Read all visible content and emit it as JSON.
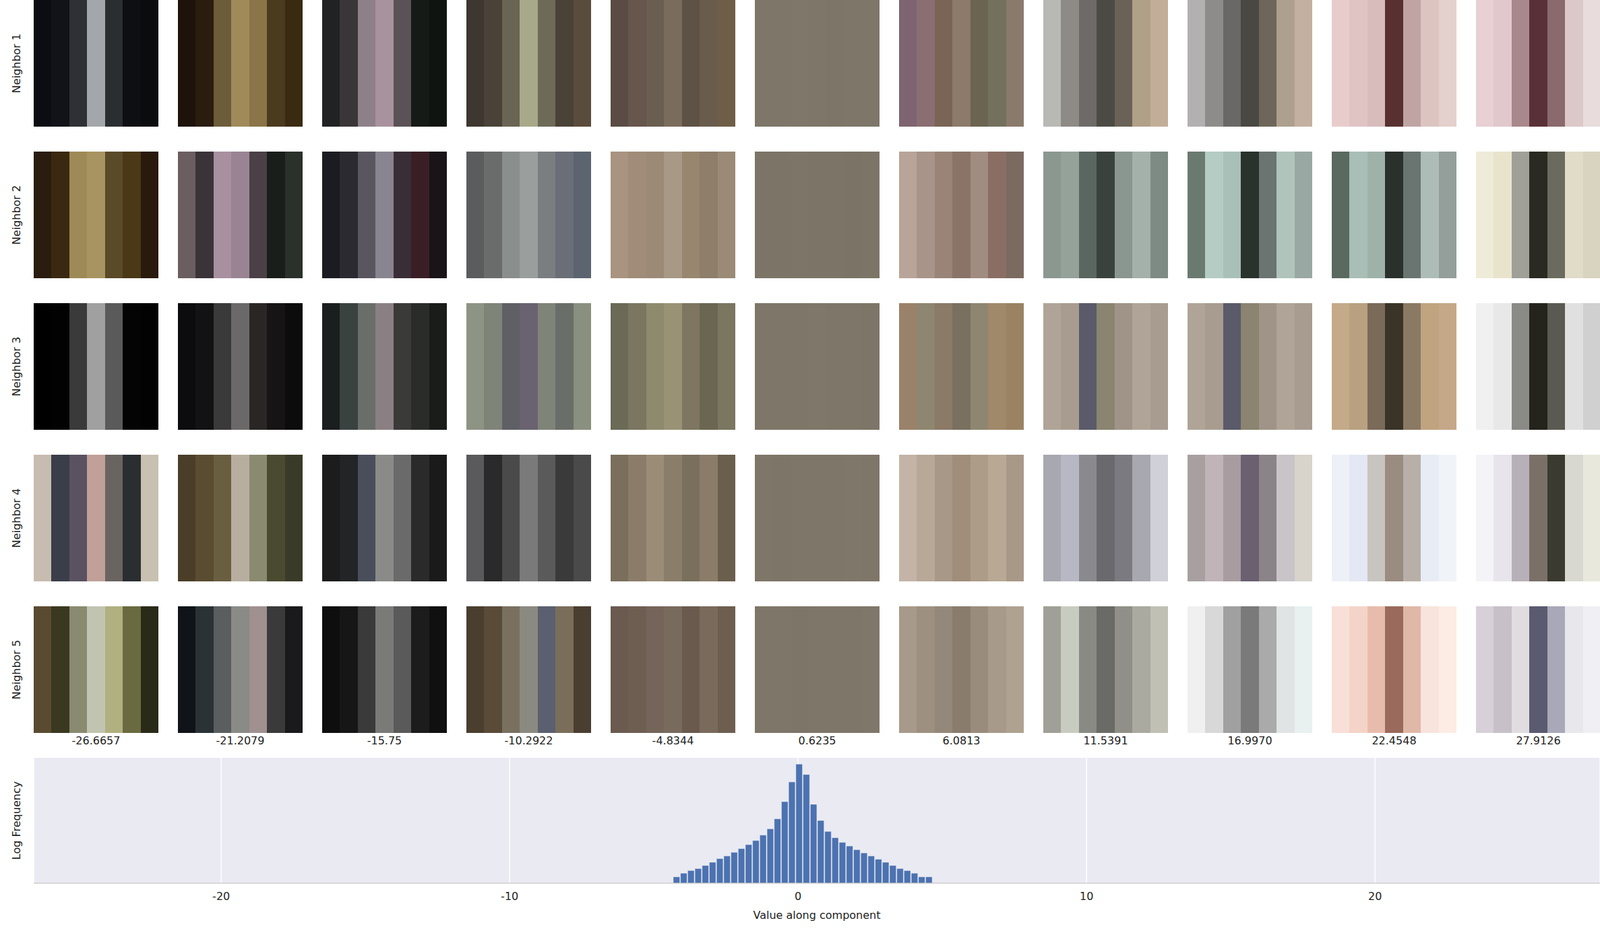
{
  "chart_data": {
    "type": "histogram",
    "xlabel": "Value along component",
    "ylabel": "Log Frequency",
    "bins": [
      -4.35,
      -4.1,
      -3.85,
      -3.6,
      -3.35,
      -3.1,
      -2.85,
      -2.6,
      -2.35,
      -2.1,
      -1.85,
      -1.6,
      -1.35,
      -1.1,
      -0.85,
      -0.6,
      -0.35,
      -0.1,
      0.15,
      0.4,
      0.65,
      0.9,
      1.15,
      1.4,
      1.65,
      1.9,
      2.15,
      2.4,
      2.65,
      2.9,
      3.15,
      3.4,
      3.65,
      3.9,
      4.15,
      4.4,
      4.65
    ],
    "counts": [
      2,
      3,
      4,
      5,
      7,
      10,
      15,
      20,
      30,
      45,
      70,
      110,
      200,
      400,
      1200,
      8000,
      70000,
      500000,
      160000,
      6000,
      1000,
      300,
      150,
      90,
      60,
      40,
      28,
      20,
      14,
      10,
      7,
      5,
      4,
      3,
      2,
      2
    ],
    "color": "#4c72b0",
    "xlim": [
      -26.5,
      27.8
    ],
    "xticks": [
      -20,
      -10,
      0,
      10,
      20
    ],
    "ylim": [
      1,
      1000000
    ],
    "yticks": [],
    "log": "y",
    "grid": true,
    "tick_labels": "x"
  },
  "patch_grid": {
    "row_labels": [
      "Neighbor 1",
      "Neighbor 2",
      "Neighbor 3",
      "Neighbor 4",
      "Neighbor 5"
    ],
    "column_values": [
      -26.6657,
      -21.2079,
      -15.75,
      -10.2922,
      -4.8344,
      0.6235,
      6.0813,
      11.5391,
      {
        "value": 16.997,
        "label": "16.9970"
      },
      22.4548,
      27.9126
    ],
    "patches": [
      [
        [
          "#0c0d12",
          "#111318",
          "#2e3034",
          "#a3a6aa",
          "#2b2e30",
          "#0d0f12",
          "#0a0c0e"
        ],
        [
          "#1e130b",
          "#2a1c0e",
          "#6d5c3a",
          "#a08a5a",
          "#8a7448",
          "#4a3a1e",
          "#3a2a12"
        ],
        [
          "#202224",
          "#3a3638",
          "#8e8088",
          "#a8929e",
          "#5a5256",
          "#161a16",
          "#101410"
        ],
        [
          "#3e3630",
          "#4a4238",
          "#6a6454",
          "#a8a88a",
          "#6e6a58",
          "#4a4236",
          "#5a4c3c"
        ],
        [
          "#5a4c44",
          "#66564c",
          "#6a5e50",
          "#7a6c5c",
          "#5e5246",
          "#6a5c4c",
          "#6e5e48"
        ],
        [
          "#7e7668",
          "#7e7668",
          "#7f7769",
          "#7e7668",
          "#7d7567",
          "#7e7668",
          "#7e7668"
        ],
        [
          "#7e6470",
          "#8a6e72",
          "#7a6456",
          "#8c7a6a",
          "#6a6450",
          "#74705e",
          "#8a7a6c"
        ],
        [
          "#b8b8b4",
          "#8e8a86",
          "#6e6a68",
          "#4c4a44",
          "#6a6256",
          "#b0a088",
          "#c2ae98"
        ],
        [
          "#b2b0b0",
          "#8e8c8a",
          "#6a6866",
          "#4a4842",
          "#6e665a",
          "#aea08e",
          "#c4b0a0"
        ],
        [
          "#e8cccc",
          "#e0c4c4",
          "#d8bcbc",
          "#583030",
          "#c0a4a4",
          "#dcc4c0",
          "#e4d0cc"
        ],
        [
          "#e8d0d4",
          "#e0c8cc",
          "#a8888c",
          "#5a3038",
          "#8a6a6c",
          "#dcc8c8",
          "#e8dcdc"
        ]
      ],
      [
        [
          "#2a1c0e",
          "#3a2810",
          "#9e8a56",
          "#a89460",
          "#5a4a28",
          "#4a3816",
          "#2a1a0c"
        ],
        [
          "#6a5e60",
          "#3a3438",
          "#a890a0",
          "#9a8494",
          "#4a4046",
          "#1a1e1a",
          "#2a302a"
        ],
        [
          "#1a1c22",
          "#2a2a30",
          "#5a5660",
          "#888490",
          "#3a2e36",
          "#3a1e26",
          "#1a1418"
        ],
        [
          "#5a5c5e",
          "#6a6c6c",
          "#8a8e8c",
          "#9a9e9c",
          "#7a7e80",
          "#6a6e76",
          "#5c6470"
        ],
        [
          "#a89480",
          "#a08c78",
          "#9c8a76",
          "#a89886",
          "#98866e",
          "#8e7e6a",
          "#9a8a76"
        ],
        [
          "#7c7466",
          "#7c7466",
          "#7d7567",
          "#7c7466",
          "#7c7466",
          "#7b7365",
          "#7c7466"
        ],
        [
          "#b8a498",
          "#a89488",
          "#9a8478",
          "#8a7468",
          "#a08c80",
          "#8a6e64",
          "#7a6a60"
        ],
        [
          "#8a9890",
          "#94a29a",
          "#5a6660",
          "#3a423e",
          "#8a9690",
          "#a4b0aa",
          "#7e8a84"
        ],
        [
          "#6a7a70",
          "#b4ccc4",
          "#a8c0b8",
          "#2a322c",
          "#6a7470",
          "#b0c4bc",
          "#9aa8a4"
        ],
        [
          "#5a6a60",
          "#a8beb6",
          "#9eb2aa",
          "#2a302c",
          "#6a7470",
          "#aebcb8",
          "#949e9a"
        ],
        [
          "#eeecd8",
          "#e8e4cc",
          "#a0a098",
          "#2a2a22",
          "#6a6a5e",
          "#e0dcc8",
          "#d8d4c0"
        ]
      ],
      [
        [
          "#000000",
          "#020202",
          "#3a3a3a",
          "#a0a0a0",
          "#5a5a5a",
          "#040404",
          "#020202"
        ],
        [
          "#0c0c0e",
          "#121214",
          "#3a3a3a",
          "#6a6868",
          "#2a2626",
          "#161414",
          "#0c0c0c"
        ],
        [
          "#1a1e1e",
          "#3a4240",
          "#6a6e6a",
          "#8a8084",
          "#3a3a38",
          "#2a2c2a",
          "#1a1c1a"
        ],
        [
          "#8e9484",
          "#7e8478",
          "#5e6066",
          "#6a6270",
          "#7e8478",
          "#6a6e68",
          "#8a9080"
        ],
        [
          "#6a6a56",
          "#7a7660",
          "#8e8a6e",
          "#9a9274",
          "#7e7660",
          "#6a6652",
          "#7a7660"
        ],
        [
          "#7e7668",
          "#7e7668",
          "#7e7668",
          "#7f7769",
          "#7e7668",
          "#7e7668",
          "#7d7567"
        ],
        [
          "#9a826a",
          "#8e8670",
          "#8a7a66",
          "#7a7060",
          "#8e8670",
          "#a0886a",
          "#9a8262"
        ],
        [
          "#b0a498",
          "#a89c90",
          "#5a5a6a",
          "#8a8470",
          "#a09488",
          "#b0a498",
          "#a89c90"
        ],
        [
          "#b0a498",
          "#a89c90",
          "#5a5a6a",
          "#8a8470",
          "#a09488",
          "#b0a498",
          "#a89c91"
        ],
        [
          "#c4aa88",
          "#b8a080",
          "#7a6a58",
          "#3a3428",
          "#8a7a64",
          "#c0a480",
          "#c4a888"
        ],
        [
          "#f0f0f0",
          "#e8e8e8",
          "#8a8a86",
          "#24241c",
          "#5a5a52",
          "#e0e0e0",
          "#d0d0d0"
        ]
      ],
      [
        [
          "#c8bcb0",
          "#3a3e4a",
          "#5a5260",
          "#c0a098",
          "#6a6460",
          "#2a2e30",
          "#c8c0b0"
        ],
        [
          "#4a3e28",
          "#5a4c30",
          "#6a5e40",
          "#b8aea0",
          "#8a8a70",
          "#4a4a30",
          "#3a3a28"
        ],
        [
          "#1c1c1c",
          "#222426",
          "#4a4e5a",
          "#8a8a88",
          "#6a6a6a",
          "#2a2a2a",
          "#1a1a1a"
        ],
        [
          "#5a5a5c",
          "#2a2a2a",
          "#4a4a4a",
          "#7a7a7a",
          "#5a5a5a",
          "#3a3a3a",
          "#4a4a4a"
        ],
        [
          "#7a6e5c",
          "#8a7c68",
          "#9a8c76",
          "#8a7e6a",
          "#7a6e5c",
          "#8a7c68",
          "#6a5e4c"
        ],
        [
          "#7e7668",
          "#7d7567",
          "#7e7668",
          "#7e7668",
          "#7e7668",
          "#7f7769",
          "#7e7668"
        ],
        [
          "#c4b4a8",
          "#b8a898",
          "#a89888",
          "#a08e7a",
          "#ac9c88",
          "#b8a894",
          "#a89888"
        ],
        [
          "#a8a8b0",
          "#b8b8c4",
          "#8a8a8e",
          "#6a6a6e",
          "#7a7a80",
          "#a8a8b0",
          "#d0d0d8"
        ],
        [
          "#a8a0a0",
          "#c0b4b8",
          "#a89ca0",
          "#6a6070",
          "#8a8488",
          "#c8c4c8",
          "#d8d4cc"
        ],
        [
          "#eef0f8",
          "#e4e8f4",
          "#c8c4c0",
          "#9a8c80",
          "#b8b0a8",
          "#e8ecf4",
          "#f0f4f8"
        ],
        [
          "#f4f4f8",
          "#e8e4ec",
          "#b8b0b8",
          "#7a7068",
          "#3a3a30",
          "#d8d8d0",
          "#e8e8dc"
        ]
      ],
      [
        [
          "#5a4a30",
          "#3a3820",
          "#8a8a70",
          "#c0c4b0",
          "#b0b080",
          "#6a6a40",
          "#2a2a18"
        ],
        [
          "#101418",
          "#2a3236",
          "#5a5e5e",
          "#8a8a86",
          "#a09090",
          "#3a3a3a",
          "#1a1a1c"
        ],
        [
          "#0e0e0e",
          "#161616",
          "#3a3a3a",
          "#7a7a78",
          "#5a5a5a",
          "#1c1c1c",
          "#101010"
        ],
        [
          "#4a3e2e",
          "#5a4a38",
          "#7a7060",
          "#8a8a80",
          "#5a6070",
          "#7a6e5a",
          "#4a3e30"
        ],
        [
          "#6a5a50",
          "#6e5e52",
          "#74645a",
          "#786a5c",
          "#6a5a4e",
          "#7a6a5c",
          "#6e5e50"
        ],
        [
          "#7e7668",
          "#7e7668",
          "#7d7567",
          "#7e7668",
          "#7e7668",
          "#7e7668",
          "#7f7769"
        ],
        [
          "#a89a8a",
          "#9e9080",
          "#94887a",
          "#8a7c6c",
          "#9a8c7c",
          "#a89a8a",
          "#b0a290"
        ],
        [
          "#a0a098",
          "#c8ccc0",
          "#8a8a84",
          "#6a6a66",
          "#909088",
          "#aaaaa0",
          "#c0c0b4"
        ],
        [
          "#f0f0f0",
          "#d8d8d8",
          "#a0a0a0",
          "#7a7a7a",
          "#aaaaaa",
          "#e0e4e4",
          "#e8f0f0"
        ],
        [
          "#f8e0d8",
          "#f4d4c8",
          "#e8bcac",
          "#9a6a5c",
          "#e0b8a8",
          "#f8e4dc",
          "#fcece4"
        ],
        [
          "#d8d0d8",
          "#c8c0c8",
          "#e0dce0",
          "#5a5a70",
          "#a8a8b8",
          "#e8e8ec",
          "#f0f0f4"
        ]
      ]
    ]
  }
}
